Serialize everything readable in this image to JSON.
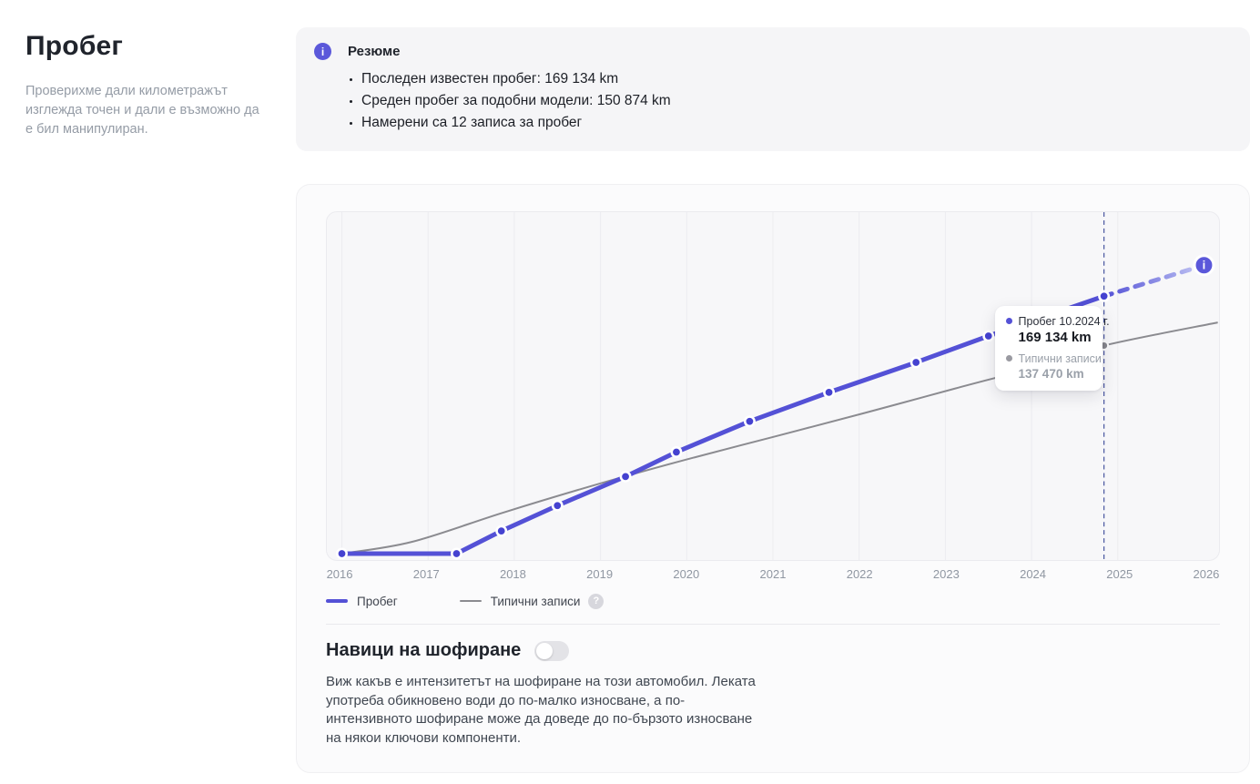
{
  "sidebar": {
    "title": "Пробег",
    "description": "Проверихме дали километражът изглежда точен и дали е възможно да е бил манипулиран."
  },
  "icons": {
    "info": "i",
    "question": "?"
  },
  "colors": {
    "accent": "#5451d6",
    "accent_marker": "#4542d0",
    "accent_fade": "#c7c9f5",
    "gray_line": "#8b8b90",
    "gray_marker": "#85858c",
    "annotation_line": "#47549f",
    "gridline": "#ececf0"
  },
  "summary": {
    "title": "Резюме",
    "bullets": [
      "Последен известен пробег: 169 134 km",
      "Среден пробег за подобни модели: 150 874 km",
      "Намерени са 12 записа за пробег"
    ]
  },
  "legend": {
    "items": [
      {
        "label": "Пробег"
      },
      {
        "label": "Типични записи"
      }
    ]
  },
  "tooltip": {
    "series1_label": "Пробег 10.2024 г.",
    "series1_value": "169 134 km",
    "series2_label": "Типични записи",
    "series2_value": "137 470 km"
  },
  "habits": {
    "title": "Навици на шофиране",
    "toggle_state": "off",
    "description": "Виж какъв е интензитетът на шофиране на този автомобил. Леката употреба обикновено води до по-малко износване, а по-интензивното шофиране може да доведе до по-бързото износване на някои ключови компоненти."
  },
  "chart_data": {
    "type": "line",
    "title": "",
    "xlabel": "",
    "ylabel": "km",
    "x_axis": {
      "ticks": [
        2016,
        2017,
        2018,
        2019,
        2020,
        2021,
        2022,
        2023,
        2024,
        2025,
        2026
      ],
      "gridline_ticks": [
        2016,
        2017,
        2018,
        2019,
        2020,
        2021,
        2022,
        2023,
        2024,
        2025
      ],
      "range": [
        2015.842,
        2026.158
      ]
    },
    "y_axis": {
      "range": [
        0,
        223000
      ],
      "unit": "km",
      "labels_visible": false
    },
    "grid": "vertical-only",
    "legend_position": "bottom-left",
    "series": [
      {
        "name": "Пробег",
        "style": "solid",
        "points": [
          {
            "x": 2016.0,
            "y": 4100
          },
          {
            "x": 2017.33,
            "y": 4100
          },
          {
            "x": 2017.85,
            "y": 18600
          },
          {
            "x": 2018.5,
            "y": 34900
          },
          {
            "x": 2019.29,
            "y": 53500
          },
          {
            "x": 2019.88,
            "y": 69200
          },
          {
            "x": 2020.73,
            "y": 88900
          },
          {
            "x": 2021.65,
            "y": 107500
          },
          {
            "x": 2022.66,
            "y": 126700
          },
          {
            "x": 2023.5,
            "y": 143600
          },
          {
            "x": 2024.84,
            "y": 169134
          }
        ],
        "markers": true,
        "projection": {
          "x": 2026.0,
          "y": 189000,
          "style": "dashed-fading",
          "end_icon": "info-icon"
        }
      },
      {
        "name": "Типични записи",
        "style": "smooth",
        "points": [
          {
            "x": 2016.0,
            "y": 4100
          },
          {
            "x": 2016.81,
            "y": 11600
          },
          {
            "x": 2017.86,
            "y": 30200
          },
          {
            "x": 2018.91,
            "y": 47700
          },
          {
            "x": 2019.96,
            "y": 63900
          },
          {
            "x": 2021.01,
            "y": 79000
          },
          {
            "x": 2022.06,
            "y": 94200
          },
          {
            "x": 2023.11,
            "y": 109900
          },
          {
            "x": 2024.09,
            "y": 124400
          },
          {
            "x": 2024.84,
            "y": 137470
          },
          {
            "x": 2026.16,
            "y": 152300
          }
        ],
        "markers": false,
        "marker_at": {
          "x": 2024.84,
          "y": 137470
        }
      }
    ],
    "annotation_line": {
      "x": 2024.84,
      "style": "dashed"
    },
    "tooltip_anchor": {
      "x": 2024.84,
      "y": 169134
    }
  }
}
